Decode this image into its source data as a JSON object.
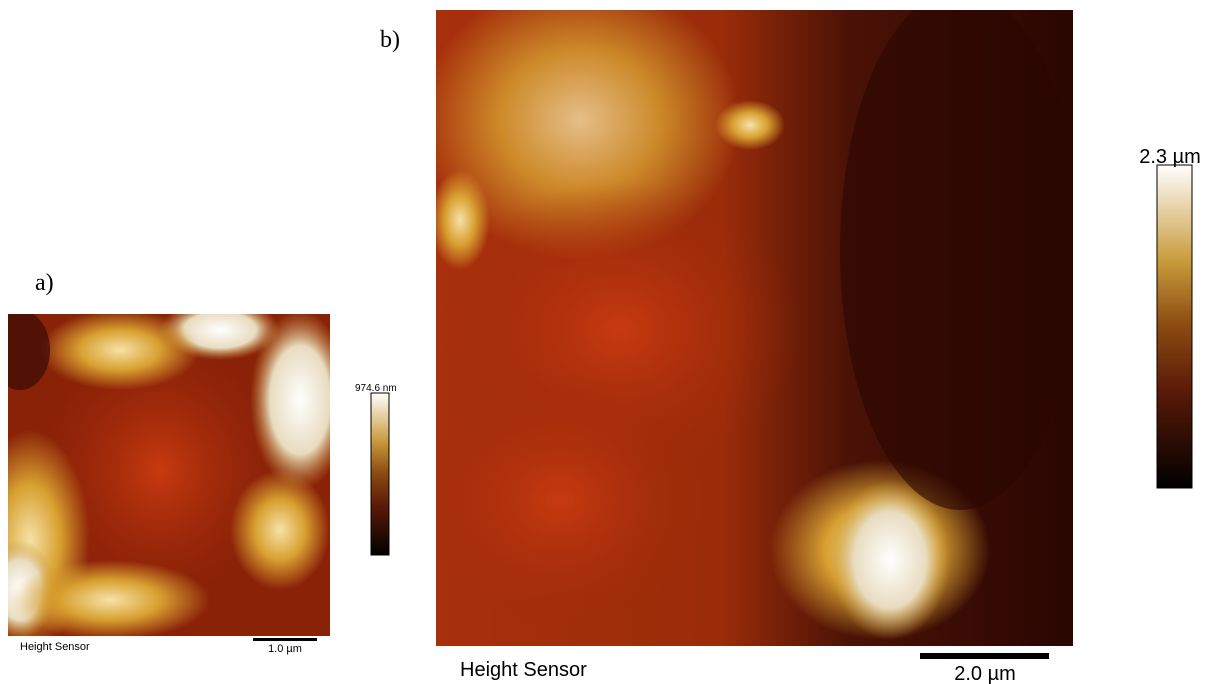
{
  "panels": [
    {
      "label": "a)",
      "colorbar_max": "974.6 nm",
      "image_caption": "Height Sensor",
      "scale_bar": "1.0 µm"
    },
    {
      "label": "b)",
      "colorbar_max": "2.3 µm",
      "image_caption": "Height Sensor",
      "scale_bar": "2.0 µm"
    }
  ]
}
